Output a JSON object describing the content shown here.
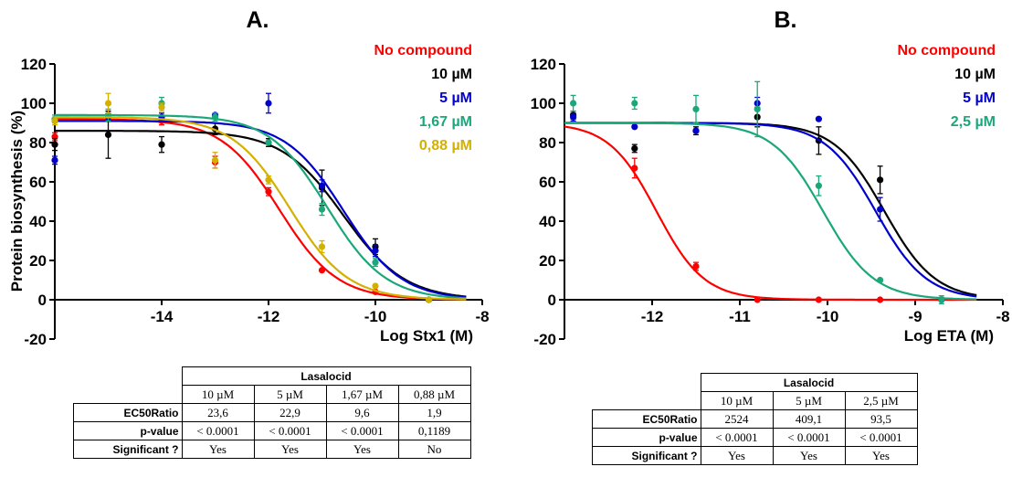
{
  "chart_data": [
    {
      "type": "scatter",
      "panel": "A.",
      "xlabel": "Log Stx1 (M)",
      "ylabel": "Protein biosynthesis (%)",
      "xlim": [
        -16,
        -8
      ],
      "ylim": [
        -20,
        120
      ],
      "xticks": [
        -14,
        -12,
        -10,
        -8
      ],
      "yticks": [
        -20,
        0,
        20,
        40,
        60,
        80,
        100,
        120
      ],
      "series": [
        {
          "name": "No compound",
          "color": "#ff0000",
          "points": [
            [
              -16,
              83
            ],
            [
              -15,
              94
            ],
            [
              -14,
              91
            ],
            [
              -13,
              70
            ],
            [
              -12,
              55
            ],
            [
              -11,
              15
            ],
            [
              -10,
              4
            ],
            [
              -9,
              0
            ]
          ],
          "errors": [
            2,
            2,
            2,
            3,
            2,
            1,
            1,
            1
          ],
          "curve": {
            "top": 92,
            "bottom": 0,
            "logec50": -11.8,
            "hill": 0.8
          }
        },
        {
          "name": "10 µM",
          "color": "#000000",
          "points": [
            [
              -16,
              79
            ],
            [
              -15,
              84
            ],
            [
              -14,
              79
            ],
            [
              -13,
              87
            ],
            [
              -12,
              80
            ],
            [
              -11,
              57
            ],
            [
              -10,
              27
            ],
            [
              -9,
              0
            ]
          ],
          "errors": [
            3,
            12,
            4,
            3,
            2,
            9,
            4,
            1
          ],
          "curve": {
            "top": 86,
            "bottom": 0,
            "logec50": -10.6,
            "hill": 0.75
          }
        },
        {
          "name": "5 µM",
          "color": "#0000cc",
          "points": [
            [
              -16,
              71
            ],
            [
              -15,
              93
            ],
            [
              -14,
              93
            ],
            [
              -13,
              94
            ],
            [
              -12,
              100
            ],
            [
              -11,
              58
            ],
            [
              -10,
              25
            ],
            [
              -9,
              0
            ]
          ],
          "errors": [
            2,
            2,
            2,
            1,
            5,
            3,
            3,
            1
          ],
          "curve": {
            "top": 91,
            "bottom": 0,
            "logec50": -10.6,
            "hill": 0.8
          }
        },
        {
          "name": "1,67 µM",
          "color": "#1aa87a",
          "points": [
            [
              -16,
              92
            ],
            [
              -15,
              94
            ],
            [
              -14,
              100
            ],
            [
              -13,
              93
            ],
            [
              -12,
              80
            ],
            [
              -11,
              46
            ],
            [
              -10,
              19
            ],
            [
              -9,
              0
            ]
          ],
          "errors": [
            2,
            3,
            3,
            2,
            1,
            3,
            2,
            1
          ],
          "curve": {
            "top": 94,
            "bottom": 0,
            "logec50": -10.9,
            "hill": 0.8
          }
        },
        {
          "name": "0,88 µM",
          "color": "#d4b000",
          "points": [
            [
              -16,
              91
            ],
            [
              -15,
              100
            ],
            [
              -14,
              98
            ],
            [
              -13,
              71
            ],
            [
              -12,
              61
            ],
            [
              -11,
              27
            ],
            [
              -10,
              7
            ],
            [
              -9,
              0
            ]
          ],
          "errors": [
            2,
            5,
            2,
            4,
            2,
            3,
            1,
            1
          ],
          "curve": {
            "top": 93,
            "bottom": 0,
            "logec50": -11.6,
            "hill": 0.8
          }
        }
      ]
    },
    {
      "type": "scatter",
      "panel": "B.",
      "xlabel": "Log ETA (M)",
      "ylabel": "",
      "xlim": [
        -13,
        -8
      ],
      "ylim": [
        -20,
        120
      ],
      "xticks": [
        -12,
        -11,
        -10,
        -9,
        -8
      ],
      "yticks": [
        -20,
        0,
        20,
        40,
        60,
        80,
        100,
        120
      ],
      "series": [
        {
          "name": "No compound",
          "color": "#ff0000",
          "points": [
            [
              -12.2,
              67
            ],
            [
              -11.5,
              17
            ],
            [
              -10.8,
              0
            ],
            [
              -10.1,
              0
            ],
            [
              -9.4,
              0
            ],
            [
              -8.7,
              0
            ]
          ],
          "errors": [
            5,
            2,
            1,
            1,
            1,
            1
          ],
          "curve": {
            "top": 90,
            "bottom": 0,
            "logec50": -11.95,
            "hill": 1.6
          }
        },
        {
          "name": "10 µM",
          "color": "#000000",
          "points": [
            [
              -12.9,
              94
            ],
            [
              -12.2,
              77
            ],
            [
              -11.5,
              86
            ],
            [
              -10.8,
              93
            ],
            [
              -10.1,
              81
            ],
            [
              -9.4,
              61
            ],
            [
              -8.7,
              0
            ]
          ],
          "errors": [
            2,
            2,
            2,
            5,
            7,
            7,
            1
          ],
          "curve": {
            "top": 90,
            "bottom": 0,
            "logec50": -9.35,
            "hill": 1.5
          }
        },
        {
          "name": "5 µM",
          "color": "#0000cc",
          "points": [
            [
              -12.9,
              93
            ],
            [
              -12.2,
              88
            ],
            [
              -11.5,
              86
            ],
            [
              -10.8,
              100
            ],
            [
              -10.1,
              92
            ],
            [
              -9.4,
              46
            ],
            [
              -8.7,
              0
            ]
          ],
          "errors": [
            2,
            1,
            1,
            3,
            1,
            6,
            1
          ],
          "curve": {
            "top": 90,
            "bottom": 0,
            "logec50": -9.45,
            "hill": 1.5
          }
        },
        {
          "name": "2,5 µM",
          "color": "#1aa87a",
          "points": [
            [
              -12.9,
              100
            ],
            [
              -12.2,
              100
            ],
            [
              -11.5,
              97
            ],
            [
              -10.8,
              97
            ],
            [
              -10.1,
              58
            ],
            [
              -9.4,
              10
            ],
            [
              -8.7,
              0
            ]
          ],
          "errors": [
            4,
            3,
            7,
            14,
            5,
            1,
            2
          ],
          "curve": {
            "top": 90,
            "bottom": 0,
            "logec50": -10.05,
            "hill": 1.5
          }
        }
      ]
    }
  ],
  "tables": [
    {
      "title": "Lasalocid",
      "columns": [
        "10 µM",
        "5 µM",
        "1,67 µM",
        "0,88 µM"
      ],
      "rows": [
        {
          "label": "EC50Ratio",
          "values": [
            "23,6",
            "22,9",
            "9,6",
            "1,9"
          ]
        },
        {
          "label": "p-value",
          "values": [
            "< 0.0001",
            "< 0.0001",
            "< 0.0001",
            "0,1189"
          ]
        },
        {
          "label": "Significant ?",
          "values": [
            "Yes",
            "Yes",
            "Yes",
            "No"
          ]
        }
      ]
    },
    {
      "title": "Lasalocid",
      "columns": [
        "10 µM",
        "5 µM",
        "2,5 µM"
      ],
      "rows": [
        {
          "label": "EC50Ratio",
          "values": [
            "2524",
            "409,1",
            "93,5"
          ]
        },
        {
          "label": "p-value",
          "values": [
            "< 0.0001",
            "< 0.0001",
            "< 0.0001"
          ]
        },
        {
          "label": "Significant ?",
          "values": [
            "Yes",
            "Yes",
            "Yes"
          ]
        }
      ]
    }
  ]
}
